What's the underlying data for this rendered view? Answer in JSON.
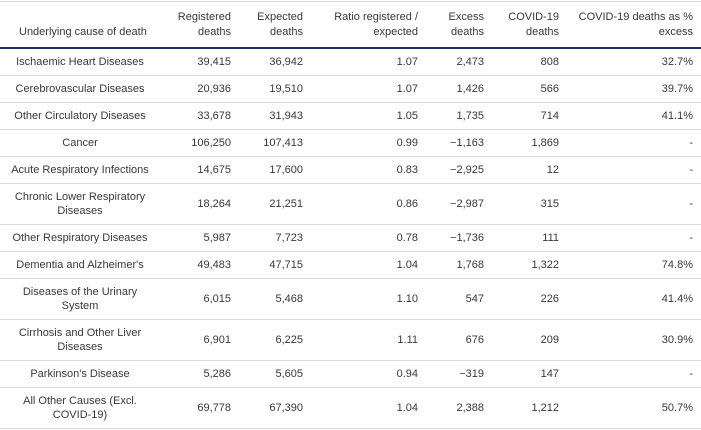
{
  "colors": {
    "header_rule": "#1e2c5a",
    "row_rule": "#d9d9d9",
    "text": "#383838",
    "background": "#ffffff"
  },
  "chart_data": {
    "type": "table",
    "columns": [
      "Underlying cause of death",
      "Registered deaths",
      "Expected deaths",
      "Ratio registered / expected",
      "Excess deaths",
      "COVID-19 deaths",
      "COVID-19 deaths as % excess"
    ],
    "rows": [
      [
        "Ischaemic Heart Diseases",
        "39,415",
        "36,942",
        "1.07",
        "2,473",
        "808",
        "32.7%"
      ],
      [
        "Cerebrovascular Diseases",
        "20,936",
        "19,510",
        "1.07",
        "1,426",
        "566",
        "39.7%"
      ],
      [
        "Other Circulatory Diseases",
        "33,678",
        "31,943",
        "1.05",
        "1,735",
        "714",
        "41.1%"
      ],
      [
        "Cancer",
        "106,250",
        "107,413",
        "0.99",
        "−1,163",
        "1,869",
        "-"
      ],
      [
        "Acute Respiratory Infections",
        "14,675",
        "17,600",
        "0.83",
        "−2,925",
        "12",
        "-"
      ],
      [
        "Chronic Lower Respiratory Diseases",
        "18,264",
        "21,251",
        "0.86",
        "−2,987",
        "315",
        "-"
      ],
      [
        "Other Respiratory Diseases",
        "5,987",
        "7,723",
        "0.78",
        "−1,736",
        "111",
        "-"
      ],
      [
        "Dementia and Alzheimer's",
        "49,483",
        "47,715",
        "1.04",
        "1,768",
        "1,322",
        "74.8%"
      ],
      [
        "Diseases of the Urinary System",
        "6,015",
        "5,468",
        "1.10",
        "547",
        "226",
        "41.4%"
      ],
      [
        "Cirrhosis and Other Liver Diseases",
        "6,901",
        "6,225",
        "1.11",
        "676",
        "209",
        "30.9%"
      ],
      [
        "Parkinson's Disease",
        "5,286",
        "5,605",
        "0.94",
        "−319",
        "147",
        "-"
      ],
      [
        "All Other Causes (Excl. COVID-19)",
        "69,778",
        "67,390",
        "1.04",
        "2,388",
        "1,212",
        "50.7%"
      ]
    ]
  }
}
